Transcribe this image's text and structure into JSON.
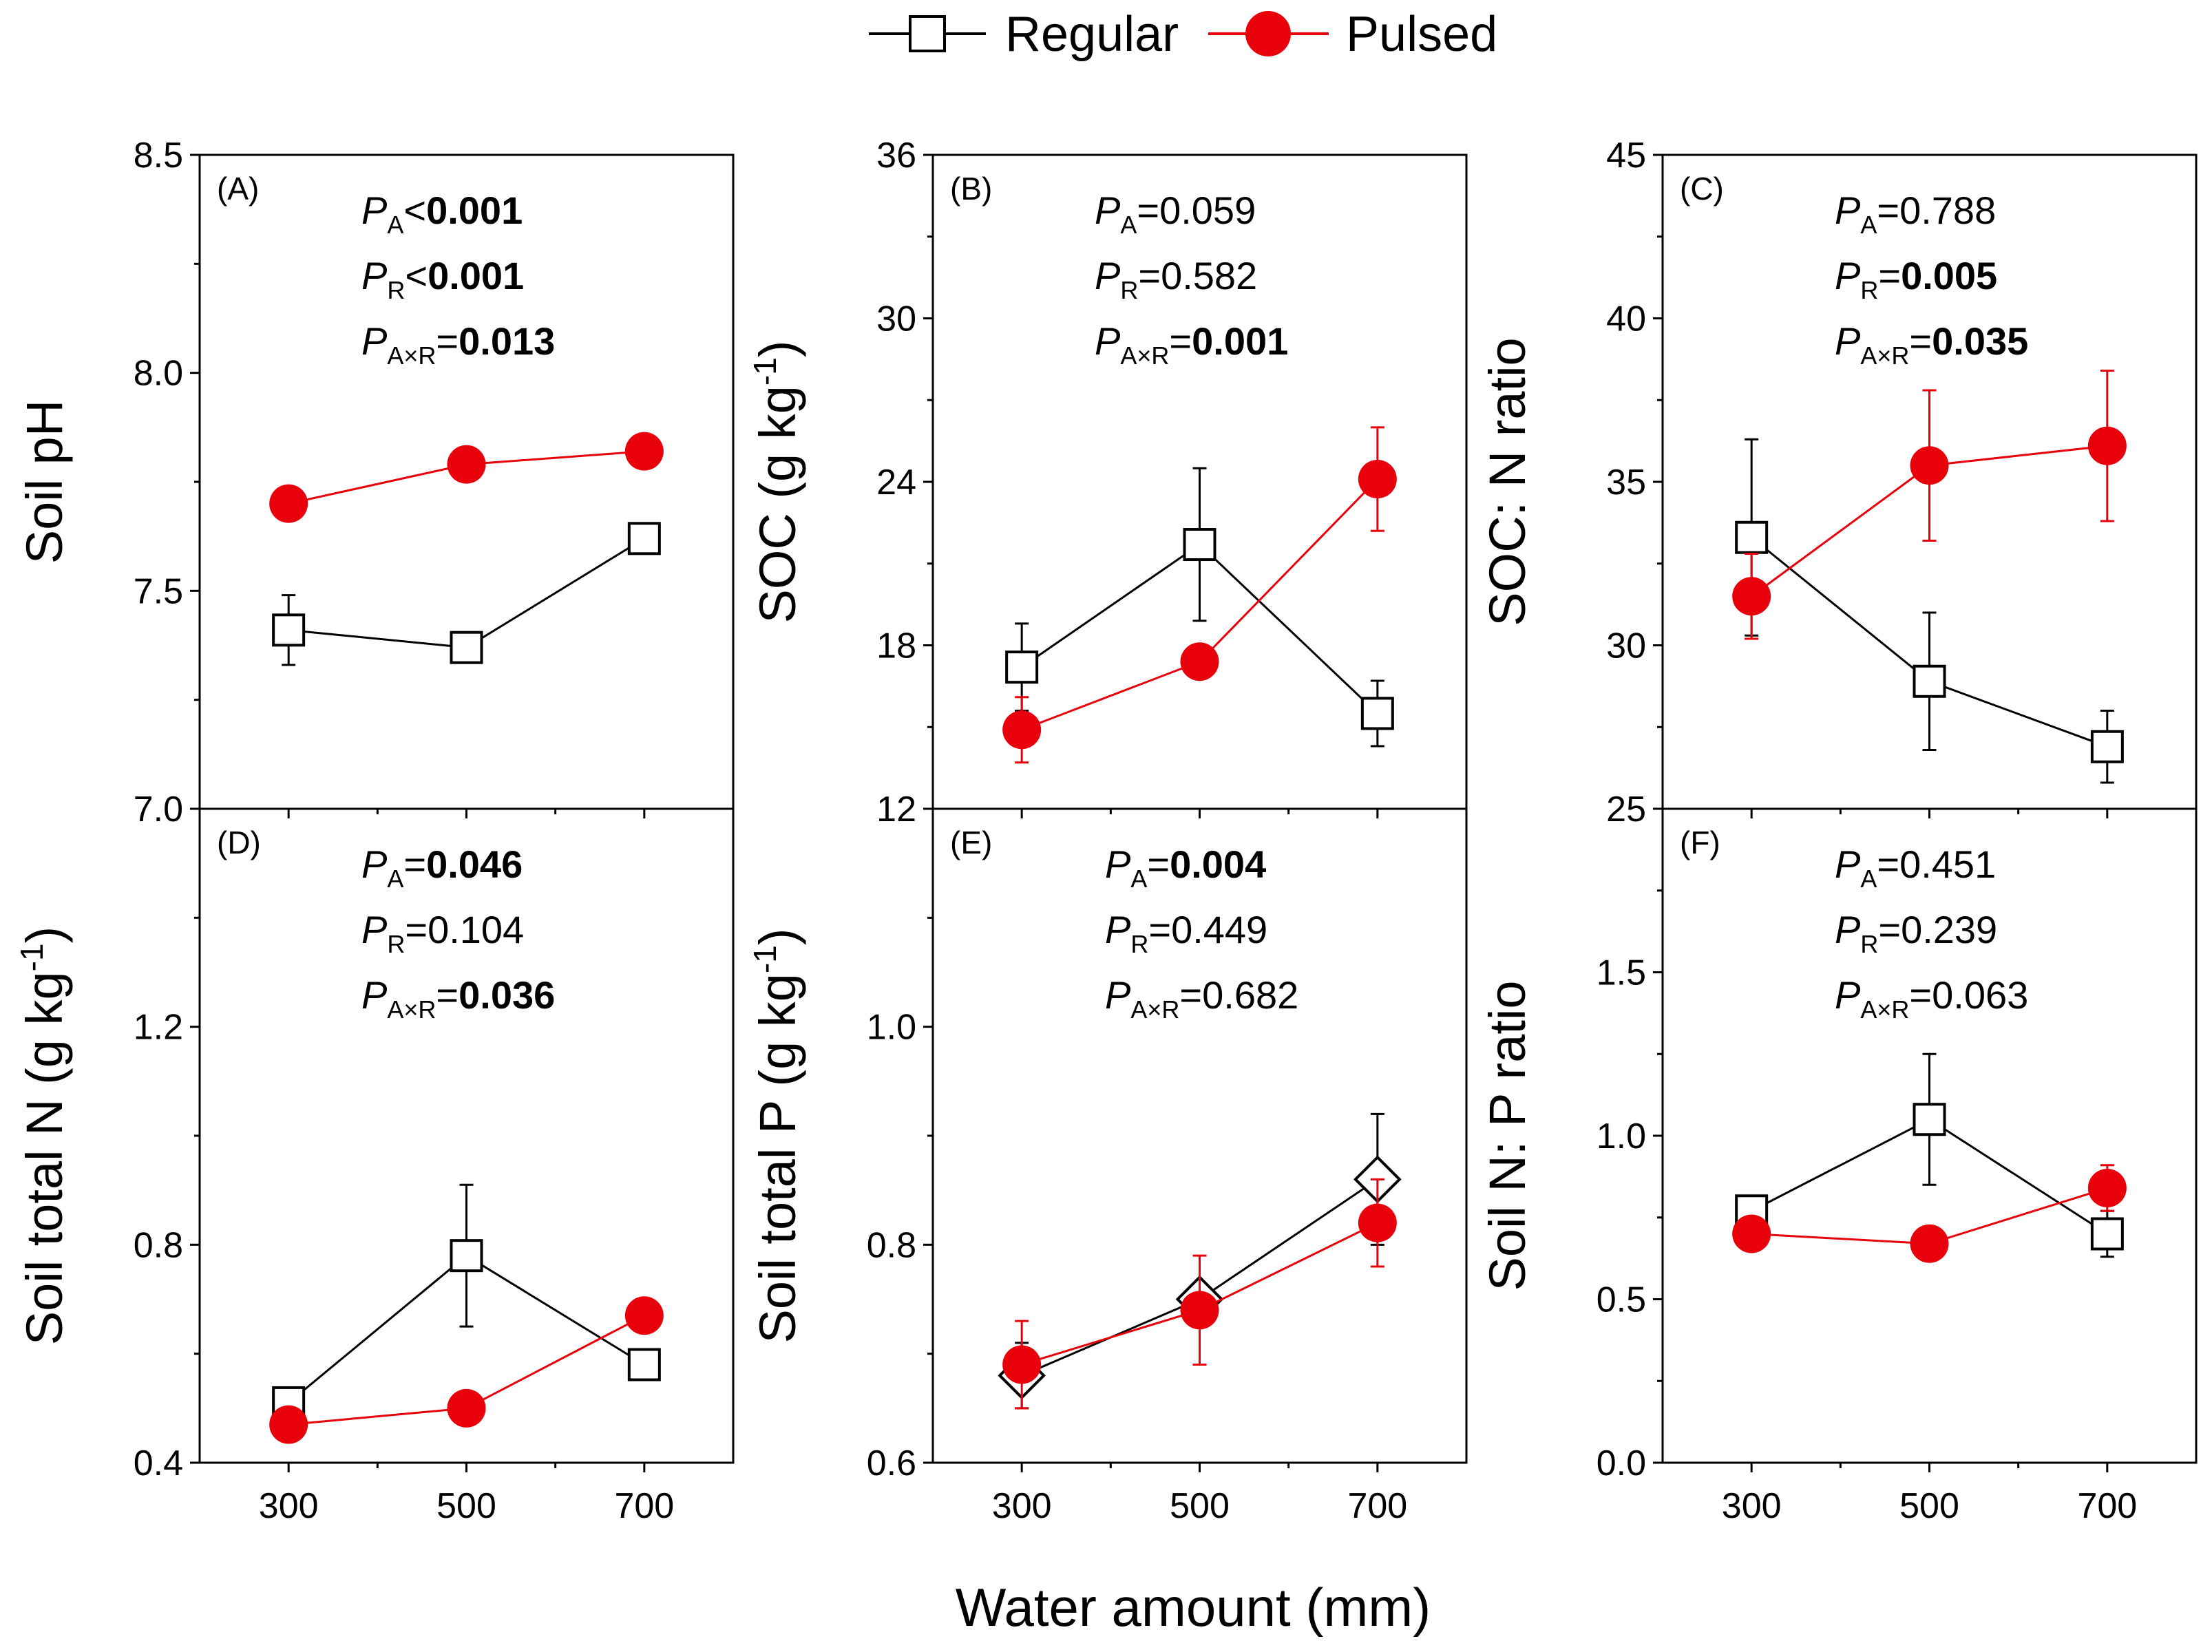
{
  "legend": {
    "regular": "Regular",
    "pulsed": "Pulsed"
  },
  "colors": {
    "regular": "#000000",
    "pulsed": "#e8000b"
  },
  "shared_xlabel": "Water amount (mm)",
  "chart_data": [
    {
      "type": "line",
      "tag": "(A)",
      "ylabel": "Soil pH",
      "ylabel_sup": "",
      "ylabel_tail": "",
      "x": [
        300,
        500,
        700
      ],
      "xticks": [
        "300",
        "500",
        "700"
      ],
      "ylim": [
        7.0,
        8.5
      ],
      "yticks": [
        "7.0",
        "7.5",
        "8.0",
        "8.5"
      ],
      "series": [
        {
          "name": "Regular",
          "marker": "square",
          "values": [
            7.41,
            7.37,
            7.62
          ],
          "errors": [
            0.08,
            0.02,
            0.03
          ]
        },
        {
          "name": "Pulsed",
          "marker": "circle",
          "values": [
            7.7,
            7.79,
            7.82
          ],
          "errors": [
            0.0,
            0.0,
            0.0
          ]
        }
      ],
      "stats": [
        {
          "sub": "A",
          "op": "<",
          "value": "0.001",
          "bold": true
        },
        {
          "sub": "R",
          "op": "<",
          "value": "0.001",
          "bold": true
        },
        {
          "sub": "A×R",
          "op": "=",
          "value": "0.013",
          "bold": true
        }
      ]
    },
    {
      "type": "line",
      "tag": "(B)",
      "ylabel": "SOC (g kg",
      "ylabel_sup": "-1",
      "ylabel_tail": ")",
      "x": [
        300,
        500,
        700
      ],
      "xticks": [
        "300",
        "500",
        "700"
      ],
      "ylim": [
        12,
        36
      ],
      "yticks": [
        "12",
        "18",
        "24",
        "30",
        "36"
      ],
      "series": [
        {
          "name": "Regular",
          "marker": "square",
          "values": [
            17.2,
            21.7,
            15.5
          ],
          "errors": [
            1.6,
            2.8,
            1.2
          ]
        },
        {
          "name": "Pulsed",
          "marker": "circle",
          "values": [
            14.9,
            17.4,
            24.1
          ],
          "errors": [
            1.2,
            0.0,
            1.9
          ]
        }
      ],
      "stats": [
        {
          "sub": "A",
          "op": "=",
          "value": "0.059",
          "bold": false
        },
        {
          "sub": "R",
          "op": "=",
          "value": "0.582",
          "bold": false
        },
        {
          "sub": "A×R",
          "op": "=",
          "value": "0.001",
          "bold": true
        }
      ]
    },
    {
      "type": "line",
      "tag": "(C)",
      "ylabel": "SOC: N ratio",
      "ylabel_sup": "",
      "ylabel_tail": "",
      "x": [
        300,
        500,
        700
      ],
      "xticks": [
        "300",
        "500",
        "700"
      ],
      "ylim": [
        25,
        45
      ],
      "yticks": [
        "25",
        "30",
        "35",
        "40",
        "45"
      ],
      "series": [
        {
          "name": "Regular",
          "marker": "square",
          "values": [
            33.3,
            28.9,
            26.9
          ],
          "errors": [
            3.0,
            2.1,
            1.1
          ]
        },
        {
          "name": "Pulsed",
          "marker": "circle",
          "values": [
            31.5,
            35.5,
            36.1
          ],
          "errors": [
            1.3,
            2.3,
            2.3
          ]
        }
      ],
      "stats": [
        {
          "sub": "A",
          "op": "=",
          "value": "0.788",
          "bold": false
        },
        {
          "sub": "R",
          "op": "=",
          "value": "0.005",
          "bold": true
        },
        {
          "sub": "A×R",
          "op": "=",
          "value": "0.035",
          "bold": true
        }
      ]
    },
    {
      "type": "line",
      "tag": "(D)",
      "ylabel": "Soil total N (g kg",
      "ylabel_sup": "-1",
      "ylabel_tail": ")",
      "x": [
        300,
        500,
        700
      ],
      "xticks": [
        "300",
        "500",
        "700"
      ],
      "ylim": [
        0.4,
        1.6
      ],
      "yticks": [
        "0.4",
        "0.8",
        "1.2"
      ],
      "series": [
        {
          "name": "Regular",
          "marker": "square",
          "values": [
            0.51,
            0.78,
            0.58
          ],
          "errors": [
            0.02,
            0.13,
            0.02
          ]
        },
        {
          "name": "Pulsed",
          "marker": "circle",
          "values": [
            0.47,
            0.5,
            0.67
          ],
          "errors": [
            0.0,
            0.0,
            0.02
          ]
        }
      ],
      "stats": [
        {
          "sub": "A",
          "op": "=",
          "value": "0.046",
          "bold": true
        },
        {
          "sub": "R",
          "op": "=",
          "value": "0.104",
          "bold": false
        },
        {
          "sub": "A×R",
          "op": "=",
          "value": "0.036",
          "bold": true
        }
      ]
    },
    {
      "type": "line",
      "tag": "(E)",
      "ylabel": "Soil total P (g kg",
      "ylabel_sup": "-1",
      "ylabel_tail": ")",
      "x": [
        300,
        500,
        700
      ],
      "xticks": [
        "300",
        "500",
        "700"
      ],
      "ylim": [
        0.6,
        1.2
      ],
      "yticks": [
        "0.6",
        "0.8",
        "1.0"
      ],
      "series": [
        {
          "name": "Regular",
          "marker": "diamond",
          "values": [
            0.68,
            0.75,
            0.86
          ],
          "errors": [
            0.03,
            0.0,
            0.06
          ]
        },
        {
          "name": "Pulsed",
          "marker": "circle",
          "values": [
            0.69,
            0.74,
            0.82
          ],
          "errors": [
            0.04,
            0.05,
            0.04
          ]
        }
      ],
      "stats": [
        {
          "sub": "A",
          "op": "=",
          "value": "0.004",
          "bold": true
        },
        {
          "sub": "R",
          "op": "=",
          "value": "0.449",
          "bold": false
        },
        {
          "sub": "A×R",
          "op": "=",
          "value": "0.682",
          "bold": false
        }
      ]
    },
    {
      "type": "line",
      "tag": "(F)",
      "ylabel": "Soil N: P ratio",
      "ylabel_sup": "",
      "ylabel_tail": "",
      "x": [
        300,
        500,
        700
      ],
      "xticks": [
        "300",
        "500",
        "700"
      ],
      "ylim": [
        0.0,
        2.0
      ],
      "yticks": [
        "0.0",
        "0.5",
        "1.0",
        "1.5"
      ],
      "series": [
        {
          "name": "Regular",
          "marker": "square",
          "values": [
            0.77,
            1.05,
            0.7
          ],
          "errors": [
            0.0,
            0.2,
            0.07
          ]
        },
        {
          "name": "Pulsed",
          "marker": "circle",
          "values": [
            0.7,
            0.67,
            0.84
          ],
          "errors": [
            0.0,
            0.0,
            0.07
          ]
        }
      ],
      "stats": [
        {
          "sub": "A",
          "op": "=",
          "value": "0.451",
          "bold": false
        },
        {
          "sub": "R",
          "op": "=",
          "value": "0.239",
          "bold": false
        },
        {
          "sub": "A×R",
          "op": "=",
          "value": "0.063",
          "bold": false
        }
      ]
    }
  ]
}
